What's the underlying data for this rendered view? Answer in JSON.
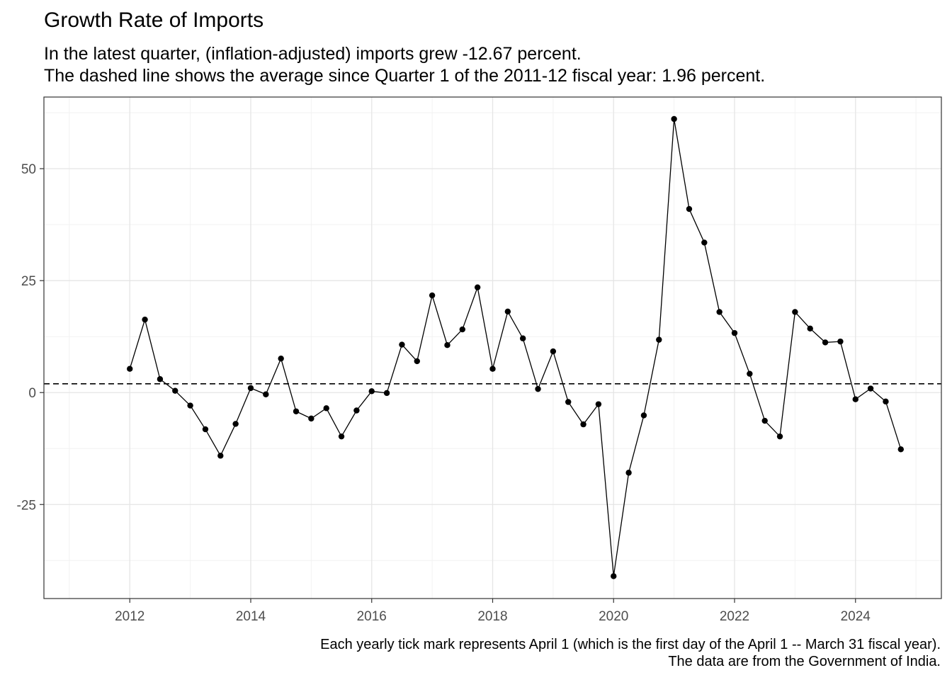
{
  "chart_data": {
    "type": "line",
    "title": "Growth Rate of Imports",
    "subtitle_lines": [
      "In the latest quarter, (inflation-adjusted) imports grew -12.67 percent.",
      "The dashed line shows the average since Quarter 1 of the 2011-12 fiscal year: 1.96 percent."
    ],
    "caption_lines": [
      "Each yearly tick mark represents April 1 (which is the first day of the April 1 -- March 31 fiscal year).",
      "The data are from the Government of India."
    ],
    "xlabel": "",
    "ylabel": "",
    "x_ticks": [
      "2012",
      "2014",
      "2016",
      "2018",
      "2020",
      "2022",
      "2024"
    ],
    "y_ticks": [
      "-25",
      "0",
      "25",
      "50"
    ],
    "xlim": [
      2010.58,
      2025.42
    ],
    "ylim": [
      -46,
      66
    ],
    "grid": true,
    "average_line": {
      "value": 1.96,
      "style": "dashed"
    },
    "series": [
      {
        "x": [
          2012.0,
          2012.25,
          2012.5,
          2012.75,
          2013.0,
          2013.25,
          2013.5,
          2013.75,
          2014.0,
          2014.25,
          2014.5,
          2014.75,
          2015.0,
          2015.25,
          2015.5,
          2015.75,
          2016.0,
          2016.25,
          2016.5,
          2016.75,
          2017.0,
          2017.25,
          2017.5,
          2017.75,
          2018.0,
          2018.25,
          2018.5,
          2018.75,
          2019.0,
          2019.25,
          2019.5,
          2019.75,
          2020.0,
          2020.25,
          2020.5,
          2020.75,
          2021.0,
          2021.25,
          2021.5,
          2021.75,
          2022.0,
          2022.25,
          2022.5,
          2022.75,
          2023.0,
          2023.25,
          2023.5,
          2023.75,
          2024.0,
          2024.25,
          2024.5,
          2024.75
        ],
        "values": [
          5.3,
          16.3,
          3.0,
          0.4,
          -2.9,
          -8.2,
          -14.1,
          -7.0,
          1.0,
          -0.4,
          7.6,
          -4.2,
          -5.8,
          -3.5,
          -9.8,
          -4.0,
          0.3,
          -0.1,
          10.7,
          7.0,
          21.7,
          10.6,
          14.1,
          23.5,
          5.3,
          18.1,
          12.1,
          0.8,
          9.2,
          -2.1,
          -7.1,
          -2.6,
          -41.0,
          -17.9,
          -5.1,
          11.8,
          61.1,
          41.0,
          33.5,
          18.0,
          13.3,
          4.2,
          -6.3,
          -9.8,
          18.0,
          14.3,
          11.2,
          11.4,
          -1.5,
          0.9,
          -2.0,
          -12.67
        ],
        "color": "#000000"
      }
    ]
  }
}
